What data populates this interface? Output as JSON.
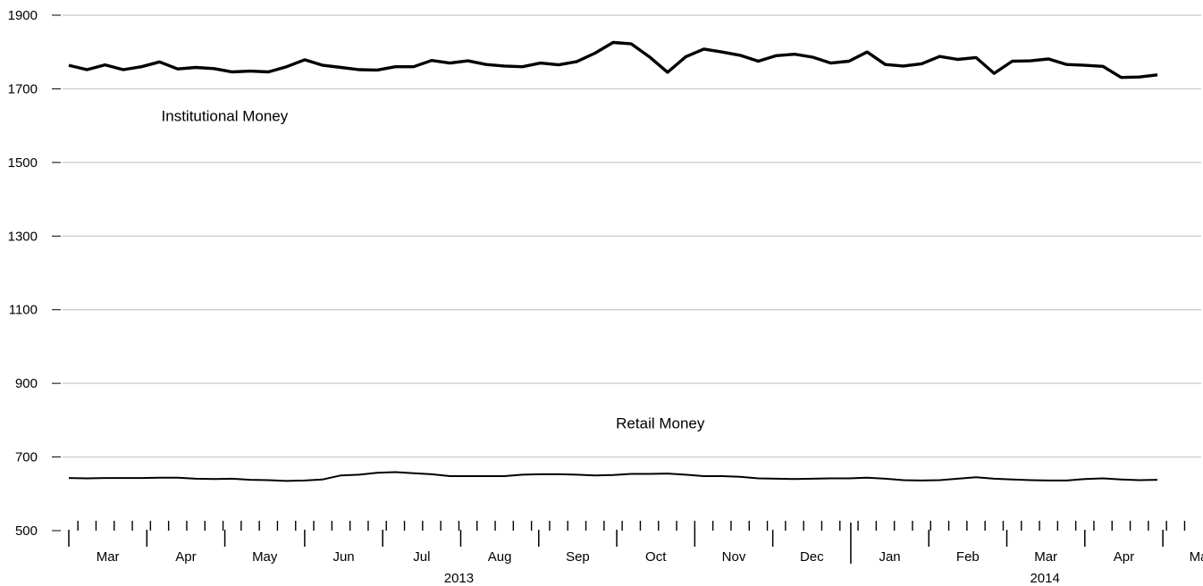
{
  "chart_data": {
    "type": "line",
    "title": "",
    "xlabel": "",
    "ylabel": "",
    "ylim": [
      500,
      1900
    ],
    "yticks": [
      500,
      700,
      900,
      1100,
      1300,
      1500,
      1700,
      1900
    ],
    "grid": "horizontal",
    "x_start": "2013-03-06",
    "x_step_weeks": 1,
    "months": [
      {
        "label": "Mar",
        "start": 0,
        "end": 4.3
      },
      {
        "label": "Apr",
        "start": 4.3,
        "end": 8.6
      },
      {
        "label": "May",
        "start": 8.6,
        "end": 13.0
      },
      {
        "label": "Jun",
        "start": 13.0,
        "end": 17.3
      },
      {
        "label": "Jul",
        "start": 17.3,
        "end": 21.6
      },
      {
        "label": "Aug",
        "start": 21.6,
        "end": 25.9
      },
      {
        "label": "Sep",
        "start": 25.9,
        "end": 30.2
      },
      {
        "label": "Oct",
        "start": 30.2,
        "end": 34.5
      },
      {
        "label": "Nov",
        "start": 34.5,
        "end": 38.8
      },
      {
        "label": "Dec",
        "start": 38.8,
        "end": 43.1
      },
      {
        "label": "Jan",
        "start": 43.1,
        "end": 47.4
      },
      {
        "label": "Feb",
        "start": 47.4,
        "end": 51.7
      },
      {
        "label": "Mar",
        "start": 51.7,
        "end": 56.0
      },
      {
        "label": "Apr",
        "start": 56.0,
        "end": 60.3
      },
      {
        "label": "May",
        "start": 60.3,
        "end": 64.6
      }
    ],
    "years": [
      {
        "label": "2013",
        "center": 21.5
      },
      {
        "label": "2014",
        "center": 53.8
      }
    ],
    "series": [
      {
        "name": "Institutional Money",
        "stroke": "#000000",
        "values": [
          1764,
          1752,
          1765,
          1752,
          1760,
          1773,
          1754,
          1758,
          1755,
          1746,
          1748,
          1746,
          1760,
          1779,
          1764,
          1758,
          1752,
          1751,
          1760,
          1760,
          1777,
          1770,
          1776,
          1766,
          1762,
          1760,
          1770,
          1765,
          1774,
          1797,
          1826,
          1822,
          1787,
          1745,
          1787,
          1808,
          1800,
          1791,
          1775,
          1790,
          1794,
          1786,
          1770,
          1775,
          1800,
          1766,
          1762,
          1768,
          1788,
          1780,
          1785,
          1742,
          1775,
          1776,
          1781,
          1766,
          1764,
          1761,
          1731,
          1732,
          1738
        ]
      },
      {
        "name": "Retail Money",
        "stroke": "#000000",
        "values": [
          643,
          642,
          643,
          643,
          643,
          644,
          644,
          641,
          640,
          641,
          638,
          637,
          635,
          636,
          639,
          650,
          652,
          657,
          659,
          656,
          653,
          648,
          648,
          648,
          648,
          652,
          653,
          653,
          652,
          650,
          651,
          654,
          654,
          655,
          652,
          648,
          648,
          646,
          642,
          641,
          640,
          641,
          642,
          642,
          644,
          641,
          637,
          636,
          637,
          641,
          645,
          641,
          639,
          637,
          636,
          636,
          640,
          642,
          639,
          637,
          638
        ]
      }
    ],
    "annotations": [
      {
        "text": "Institutional Money",
        "series": 0,
        "x": 5.1,
        "y": 1612
      },
      {
        "text": "Retail Money",
        "series": 1,
        "x": 32.6,
        "y": 778
      }
    ]
  }
}
